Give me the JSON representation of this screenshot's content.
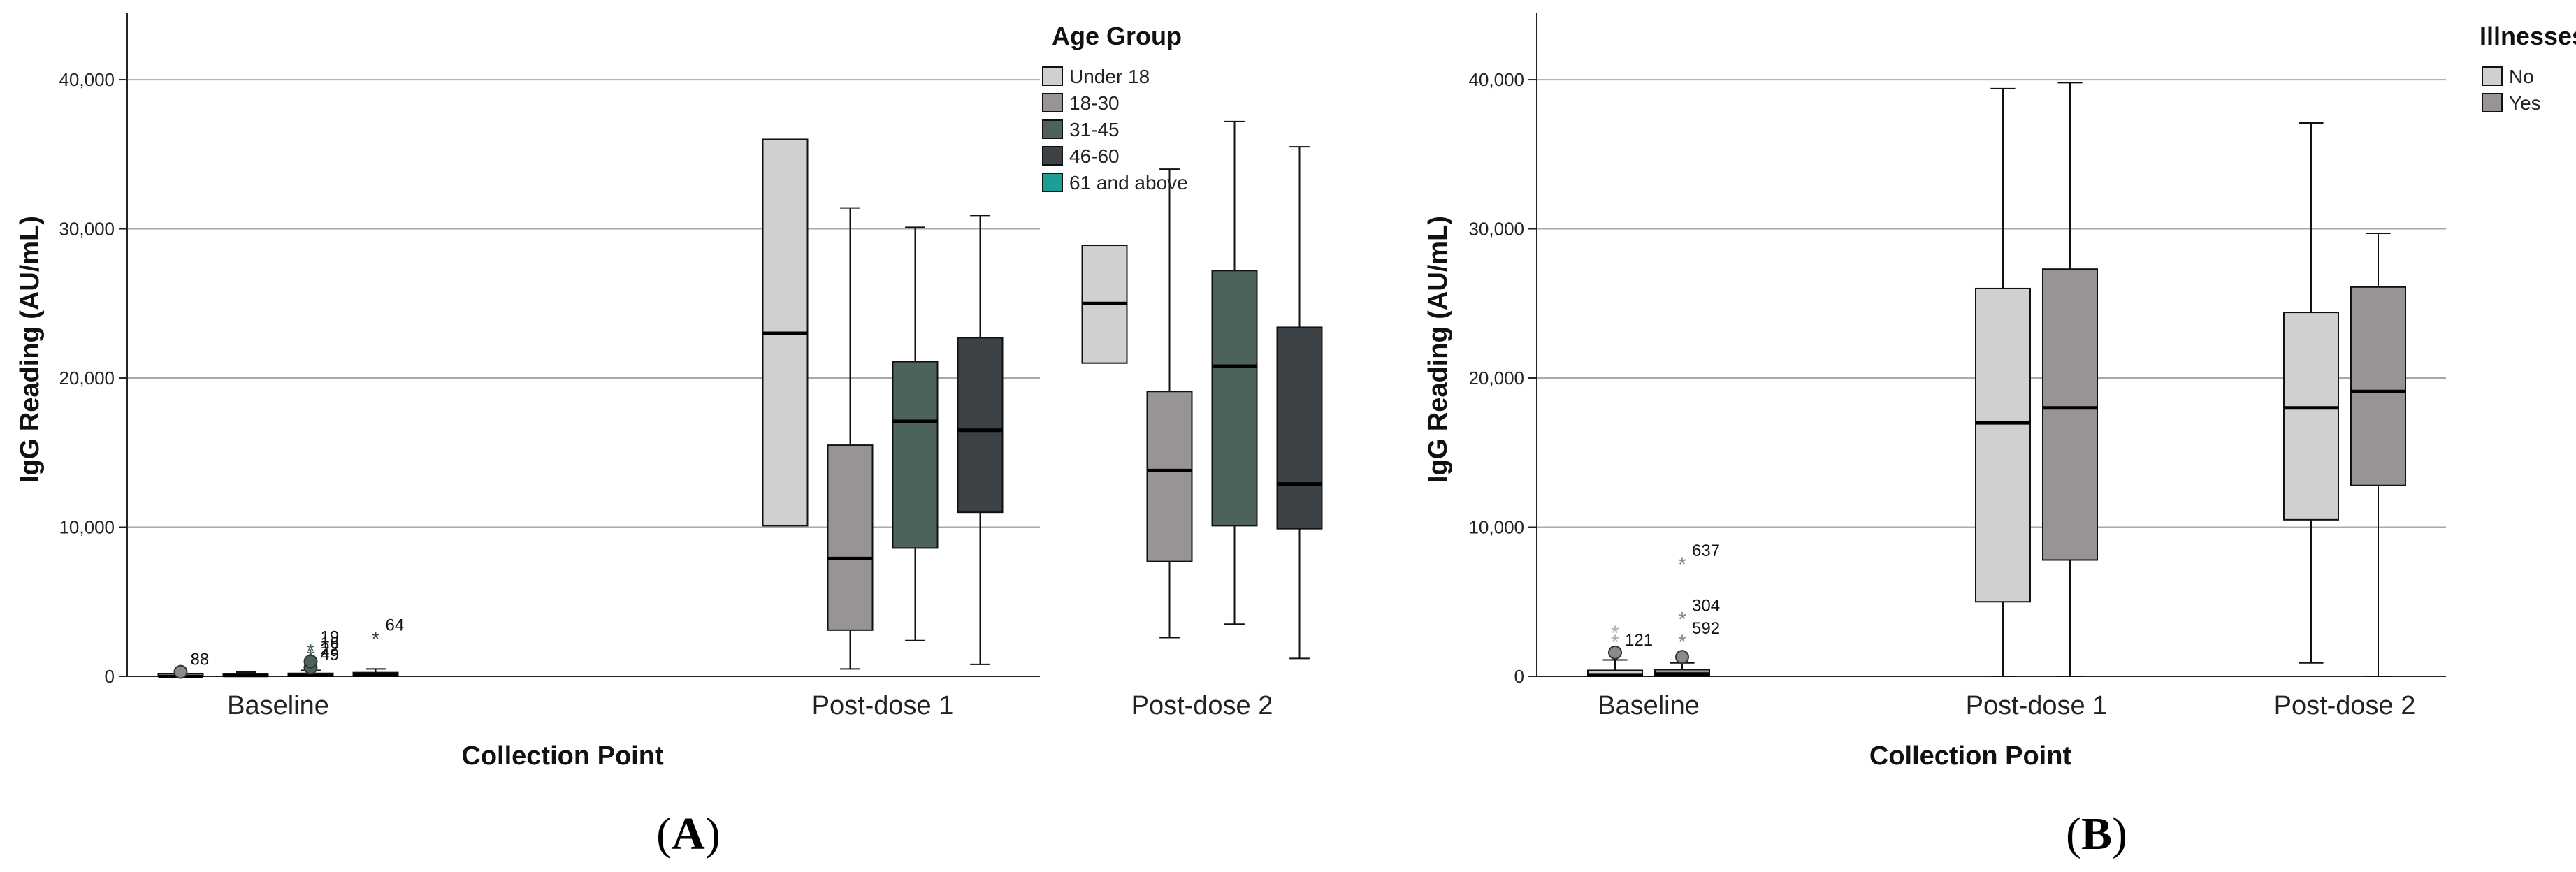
{
  "chart_data": [
    {
      "panel_label": "A",
      "type": "boxplot",
      "xlabel": "Collection Point",
      "ylabel": "IgG Reading (AU/mL)",
      "ylim": [
        0,
        44500
      ],
      "yticks": [
        0,
        10000,
        20000,
        30000,
        40000
      ],
      "ytick_labels": [
        "0",
        "10,000",
        "20,000",
        "30,000",
        "40,000"
      ],
      "categories": [
        "Baseline",
        "Post-dose 1",
        "Post-dose 2"
      ],
      "legend_title": "Age Group",
      "series": [
        {
          "name": "Under 18",
          "color": "#d0d0d0",
          "boxes": [
            {
              "min": 0,
              "q1": 0,
              "median": 0,
              "q3": 0,
              "max": 0
            },
            {
              "min": 10100,
              "q1": 10100,
              "median": 23000,
              "q3": 36000,
              "max": 36000
            },
            {
              "min": 21000,
              "q1": 21000,
              "median": 25000,
              "q3": 28900,
              "max": 28900
            }
          ]
        },
        {
          "name": "18-30",
          "color": "#989494",
          "boxes": [
            {
              "min": 0,
              "q1": 0,
              "median": 60,
              "q3": 150,
              "max": 280
            },
            {
              "min": 500,
              "q1": 3100,
              "median": 7900,
              "q3": 15500,
              "max": 31400
            },
            {
              "min": 2600,
              "q1": 7700,
              "median": 13800,
              "q3": 19100,
              "max": 34000
            }
          ]
        },
        {
          "name": "31-45",
          "color": "#4d6258",
          "boxes": [
            {
              "min": 0,
              "q1": 0,
              "median": 80,
              "q3": 200,
              "max": 400
            },
            {
              "min": 2400,
              "q1": 8600,
              "median": 17100,
              "q3": 21100,
              "max": 30100
            },
            {
              "min": 3500,
              "q1": 10100,
              "median": 20800,
              "q3": 27200,
              "max": 37200
            }
          ]
        },
        {
          "name": "46-60",
          "color": "#3d4247",
          "boxes": [
            {
              "min": 0,
              "q1": 0,
              "median": 100,
              "q3": 250,
              "max": 500
            },
            {
              "min": 800,
              "q1": 11000,
              "median": 16500,
              "q3": 22700,
              "max": 30900
            },
            {
              "min": 1200,
              "q1": 9900,
              "median": 12900,
              "q3": 23400,
              "max": 35500
            }
          ]
        },
        {
          "name": "61 and above",
          "color": "#1a9e96",
          "boxes": []
        }
      ],
      "outliers": [
        {
          "label": "88",
          "category": "Baseline",
          "series": "Under 18",
          "y": 300,
          "shape": "circle",
          "color": "#8a8a8a"
        },
        {
          "label": "19",
          "category": "Baseline",
          "series": "31-45",
          "y": 1800,
          "shape": "star",
          "color": "#4d6258"
        },
        {
          "label": "16",
          "category": "Baseline",
          "series": "31-45",
          "y": 1400,
          "shape": "star",
          "color": "#4d6258"
        },
        {
          "label": "49",
          "category": "Baseline",
          "series": "31-45",
          "y": 600,
          "shape": "circle",
          "color": "#4d6258"
        },
        {
          "label": "22",
          "category": "Baseline",
          "series": "31-45",
          "y": 1000,
          "shape": "circle",
          "color": "#4d6258"
        },
        {
          "label": "64",
          "category": "Baseline",
          "series": "46-60",
          "y": 2600,
          "shape": "star",
          "color": "#3d4247"
        }
      ]
    },
    {
      "panel_label": "B",
      "type": "boxplot",
      "xlabel": "Collection Point",
      "ylabel": "IgG Reading (AU/mL)",
      "ylim": [
        0,
        44500
      ],
      "yticks": [
        0,
        10000,
        20000,
        30000,
        40000
      ],
      "ytick_labels": [
        "0",
        "10,000",
        "20,000",
        "30,000",
        "40,000"
      ],
      "categories": [
        "Baseline",
        "Post-dose 1",
        "Post-dose 2"
      ],
      "legend_title": "Illnesses",
      "series": [
        {
          "name": "No",
          "color": "#d0d0d0",
          "boxes": [
            {
              "min": 0,
              "q1": 0,
              "median": 100,
              "q3": 400,
              "max": 1100
            },
            {
              "min": 0,
              "q1": 5000,
              "median": 17000,
              "q3": 26000,
              "max": 39400
            },
            {
              "min": 900,
              "q1": 10500,
              "median": 18000,
              "q3": 24400,
              "max": 37100
            }
          ]
        },
        {
          "name": "Yes",
          "color": "#989494",
          "boxes": [
            {
              "min": 0,
              "q1": 0,
              "median": 150,
              "q3": 450,
              "max": 900
            },
            {
              "min": 0,
              "q1": 7800,
              "median": 18000,
              "q3": 27300,
              "max": 39800
            },
            {
              "min": 0,
              "q1": 12800,
              "median": 19100,
              "q3": 26100,
              "max": 29700
            }
          ]
        }
      ],
      "outliers": [
        {
          "label": "121",
          "category": "Baseline",
          "series": "No",
          "y": 1600,
          "shape": "circle",
          "color": "#8a8a8a"
        },
        {
          "label": "",
          "category": "Baseline",
          "series": "No",
          "y": 2400,
          "shape": "star",
          "color": "#b0b0b0"
        },
        {
          "label": "",
          "category": "Baseline",
          "series": "No",
          "y": 3000,
          "shape": "star",
          "color": "#b0b0b0"
        },
        {
          "label": "637",
          "category": "Baseline",
          "series": "Yes",
          "y": 7600,
          "shape": "star",
          "color": "#8a8a8a"
        },
        {
          "label": "304",
          "category": "Baseline",
          "series": "Yes",
          "y": 3900,
          "shape": "star",
          "color": "#8a8a8a"
        },
        {
          "label": "592",
          "category": "Baseline",
          "series": "Yes",
          "y": 2400,
          "shape": "star",
          "color": "#8a8a8a"
        },
        {
          "label": "",
          "category": "Baseline",
          "series": "Yes",
          "y": 1300,
          "shape": "circle",
          "color": "#8a8a8a"
        }
      ]
    }
  ]
}
